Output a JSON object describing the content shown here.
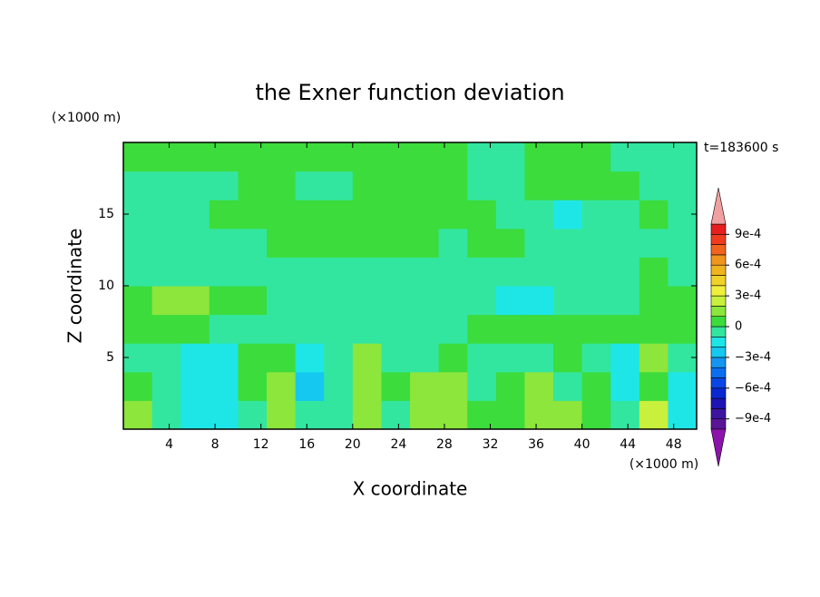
{
  "chart_data": {
    "type": "contour",
    "title": "the Exner function deviation",
    "x_label": "X coordinate",
    "y_label": "Z coordinate",
    "x_unit": "(×1000 m)",
    "y_unit": "(×1000 m)",
    "annotation": "t=183600 s",
    "xlim": [
      0,
      50
    ],
    "ylim": [
      0,
      20
    ],
    "xticks": [
      4,
      8,
      12,
      16,
      20,
      24,
      28,
      32,
      36,
      40,
      44,
      48
    ],
    "yticks": [
      5,
      10,
      15
    ],
    "x": [
      1.25,
      3.75,
      6.25,
      8.75,
      11.25,
      13.75,
      16.25,
      18.75,
      21.25,
      23.75,
      26.25,
      28.75,
      31.25,
      33.75,
      36.25,
      38.75,
      41.25,
      43.75,
      46.25,
      48.75
    ],
    "y": [
      1,
      3,
      5,
      7,
      9,
      11,
      13,
      15,
      17,
      19
    ],
    "z": [
      [
        0.00015,
        -5e-05,
        -0.00015,
        -0.00015,
        -5e-05,
        0.00015,
        -5e-05,
        -5e-05,
        0.00015,
        -5e-05,
        0.00015,
        0.00015,
        5e-05,
        5e-05,
        0.00015,
        0.00015,
        5e-05,
        -5e-05,
        0.00025,
        -0.00015
      ],
      [
        5e-05,
        -5e-05,
        -0.00015,
        -0.00015,
        5e-05,
        0.00015,
        -0.00025,
        -5e-05,
        0.00015,
        5e-05,
        0.00015,
        0.00015,
        -5e-05,
        5e-05,
        0.00015,
        -5e-05,
        5e-05,
        -0.00015,
        5e-05,
        -0.00015
      ],
      [
        -5e-05,
        -5e-05,
        -0.00015,
        -0.00015,
        5e-05,
        5e-05,
        -0.00015,
        -5e-05,
        0.00015,
        -5e-05,
        -5e-05,
        5e-05,
        -5e-05,
        -5e-05,
        -5e-05,
        5e-05,
        -5e-05,
        -0.00015,
        0.00015,
        -5e-05
      ],
      [
        5e-05,
        5e-05,
        5e-05,
        -5e-05,
        -5e-05,
        -5e-05,
        -5e-05,
        -5e-05,
        -5e-05,
        -5e-05,
        -5e-05,
        -5e-05,
        5e-05,
        5e-05,
        5e-05,
        5e-05,
        5e-05,
        5e-05,
        5e-05,
        5e-05
      ],
      [
        5e-05,
        0.00015,
        0.00015,
        5e-05,
        5e-05,
        -5e-05,
        -5e-05,
        -5e-05,
        -5e-05,
        -5e-05,
        -5e-05,
        -5e-05,
        -5e-05,
        -0.00015,
        -0.00015,
        -5e-05,
        -5e-05,
        -5e-05,
        5e-05,
        5e-05
      ],
      [
        -5e-05,
        -5e-05,
        -5e-05,
        -5e-05,
        -5e-05,
        -5e-05,
        -5e-05,
        -5e-05,
        -5e-05,
        -5e-05,
        -5e-05,
        -5e-05,
        -5e-05,
        -5e-05,
        -5e-05,
        -5e-05,
        -5e-05,
        -5e-05,
        5e-05,
        -5e-05
      ],
      [
        -5e-05,
        -5e-05,
        -5e-05,
        -5e-05,
        -5e-05,
        5e-05,
        5e-05,
        5e-05,
        5e-05,
        5e-05,
        5e-05,
        -5e-05,
        5e-05,
        5e-05,
        -5e-05,
        -5e-05,
        -5e-05,
        -5e-05,
        -5e-05,
        -5e-05
      ],
      [
        -5e-05,
        -5e-05,
        -5e-05,
        5e-05,
        5e-05,
        5e-05,
        5e-05,
        5e-05,
        5e-05,
        5e-05,
        5e-05,
        5e-05,
        5e-05,
        -5e-05,
        -5e-05,
        -0.00015,
        -5e-05,
        -5e-05,
        5e-05,
        -5e-05
      ],
      [
        -5e-05,
        -5e-05,
        -5e-05,
        -5e-05,
        5e-05,
        5e-05,
        -5e-05,
        -5e-05,
        5e-05,
        5e-05,
        5e-05,
        5e-05,
        -5e-05,
        -5e-05,
        5e-05,
        5e-05,
        5e-05,
        5e-05,
        -5e-05,
        -5e-05
      ],
      [
        5e-05,
        5e-05,
        5e-05,
        5e-05,
        5e-05,
        5e-05,
        5e-05,
        5e-05,
        5e-05,
        5e-05,
        5e-05,
        5e-05,
        -5e-05,
        -5e-05,
        5e-05,
        5e-05,
        5e-05,
        -5e-05,
        -5e-05,
        -5e-05
      ]
    ],
    "levels": [
      -0.001,
      -0.0009,
      -0.0008,
      -0.0007,
      -0.0006,
      -0.0005,
      -0.0004,
      -0.0003,
      -0.0002,
      -0.0001,
      0,
      0.0001,
      0.0002,
      0.0003,
      0.0004,
      0.0005,
      0.0006,
      0.0007,
      0.0008,
      0.0009,
      0.001
    ],
    "colors": [
      "#8c14aa",
      "#5a1496",
      "#3c14a0",
      "#1e14b4",
      "#0a28d2",
      "#0a46e6",
      "#0a6ef0",
      "#1496f0",
      "#14c8f0",
      "#1ee6e6",
      "#32e6a0",
      "#3cdc3c",
      "#8ce63c",
      "#c8f03c",
      "#f0f03c",
      "#f0d228",
      "#f0b41e",
      "#f0961e",
      "#f0641e",
      "#f03c1e",
      "#e61e1e",
      "#f0a0a0"
    ],
    "colorbar_ticks": [
      {
        "value": 0.0009,
        "label": "9e-4"
      },
      {
        "value": 0.0006,
        "label": "6e-4"
      },
      {
        "value": 0.0003,
        "label": "3e-4"
      },
      0,
      {
        "value": -0.0003,
        "label": "−3e-4"
      },
      {
        "value": -0.0006,
        "label": "−6e-4"
      },
      {
        "value": -0.0009,
        "label": "−9e-4"
      }
    ]
  }
}
